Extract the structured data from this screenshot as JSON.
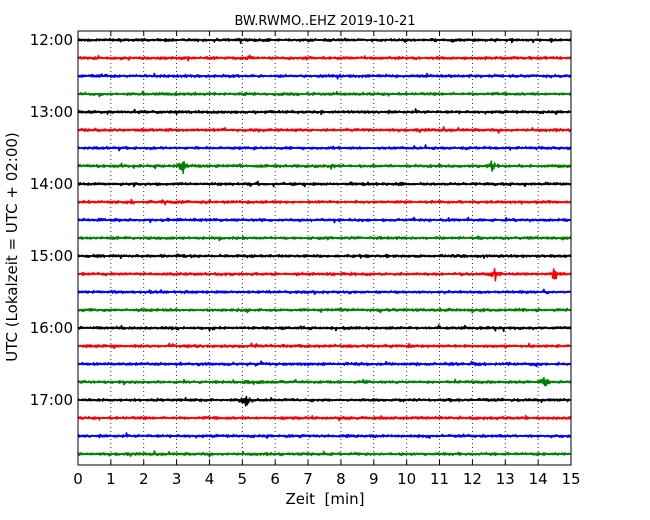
{
  "chart_data": {
    "type": "line",
    "title": "BW.RWMO..EHZ 2019-10-21",
    "xlabel": "Zeit  [min]",
    "ylabel": "UTC (Lokalzeit = UTC + 02:00)",
    "xlim": [
      0,
      15
    ],
    "x_ticks": [
      0,
      1,
      2,
      3,
      4,
      5,
      6,
      7,
      8,
      9,
      10,
      11,
      12,
      13,
      14,
      15
    ],
    "x_tick_labels": [
      "0",
      "1",
      "2",
      "3",
      "4",
      "5",
      "6",
      "7",
      "8",
      "9",
      "10",
      "11",
      "12",
      "13",
      "14",
      "15"
    ],
    "y_tick_labels": [
      "12:00",
      "13:00",
      "14:00",
      "15:00",
      "16:00",
      "17:00"
    ],
    "grid": "vertical dotted",
    "legend": "none",
    "trace_interval_minutes": 15,
    "trace_colors": [
      "#000000",
      "#ff0000",
      "#0000ff",
      "#008000"
    ],
    "traces": [
      {
        "start": "12:00",
        "color": "#000000",
        "events": []
      },
      {
        "start": "12:15",
        "color": "#ff0000",
        "events": []
      },
      {
        "start": "12:30",
        "color": "#0000ff",
        "events": []
      },
      {
        "start": "12:45",
        "color": "#008000",
        "events": []
      },
      {
        "start": "13:00",
        "color": "#000000",
        "events": []
      },
      {
        "start": "13:15",
        "color": "#ff0000",
        "events": []
      },
      {
        "start": "13:30",
        "color": "#0000ff",
        "events": []
      },
      {
        "start": "13:45",
        "color": "#008000",
        "events": [
          3.2,
          12.6
        ]
      },
      {
        "start": "14:00",
        "color": "#000000",
        "events": []
      },
      {
        "start": "14:15",
        "color": "#ff0000",
        "events": []
      },
      {
        "start": "14:30",
        "color": "#0000ff",
        "events": []
      },
      {
        "start": "14:45",
        "color": "#008000",
        "events": []
      },
      {
        "start": "15:00",
        "color": "#000000",
        "events": []
      },
      {
        "start": "15:15",
        "color": "#ff0000",
        "events": [
          12.7,
          14.5
        ]
      },
      {
        "start": "15:30",
        "color": "#0000ff",
        "events": []
      },
      {
        "start": "15:45",
        "color": "#008000",
        "events": []
      },
      {
        "start": "16:00",
        "color": "#000000",
        "events": []
      },
      {
        "start": "16:15",
        "color": "#ff0000",
        "events": []
      },
      {
        "start": "16:30",
        "color": "#0000ff",
        "events": []
      },
      {
        "start": "16:45",
        "color": "#008000",
        "events": [
          14.2
        ]
      },
      {
        "start": "17:00",
        "color": "#000000",
        "events": [
          5.1
        ]
      },
      {
        "start": "17:15",
        "color": "#ff0000",
        "events": []
      },
      {
        "start": "17:30",
        "color": "#0000ff",
        "events": []
      },
      {
        "start": "17:45",
        "color": "#008000",
        "events": []
      }
    ]
  }
}
